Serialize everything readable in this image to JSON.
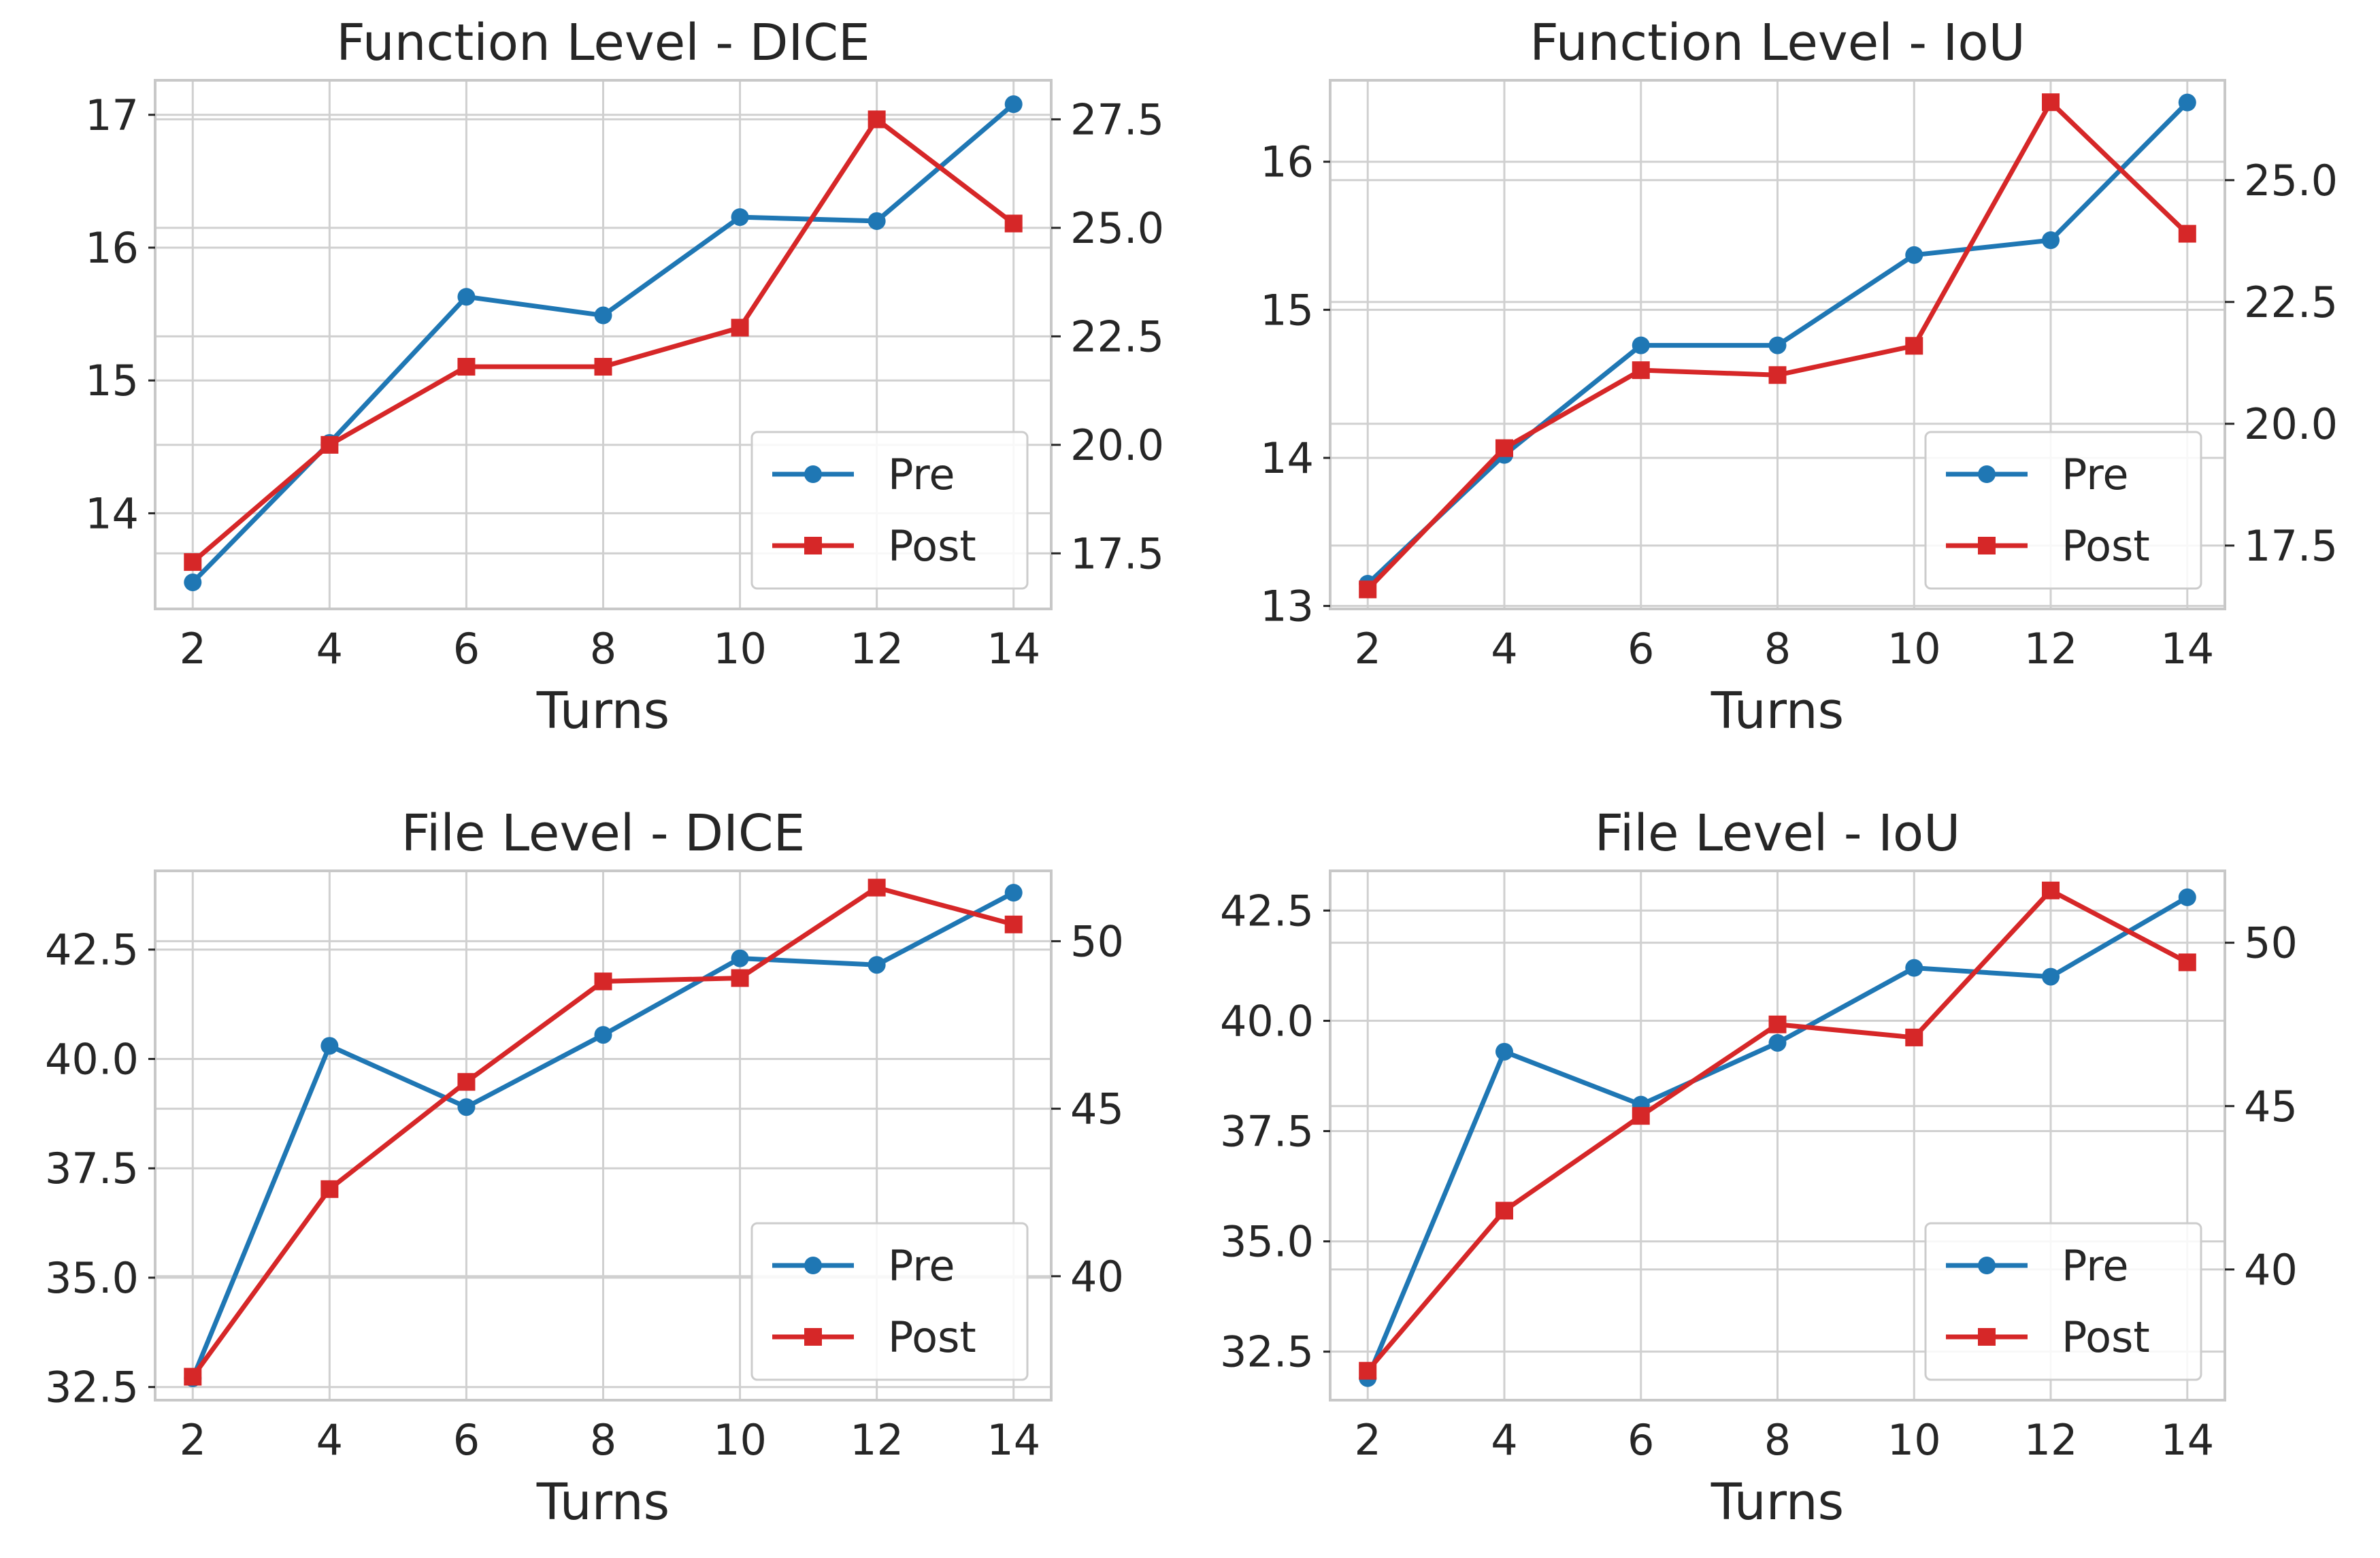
{
  "colors": {
    "pre": "#1f77b4",
    "post": "#d62728",
    "grid": "#d0d0d0",
    "spine": "#c8c8c8",
    "text": "#262626"
  },
  "chart_data": [
    {
      "type": "line",
      "title": "Function Level - DICE",
      "xlabel": "Turns",
      "x": [
        2,
        4,
        6,
        8,
        10,
        12,
        14
      ],
      "xticks": [
        "2",
        "4",
        "6",
        "8",
        "10",
        "12",
        "14"
      ],
      "xlim": [
        1.45,
        14.55
      ],
      "ylim_left": [
        13.28,
        17.26
      ],
      "ylim_right": [
        16.22,
        28.4
      ],
      "yticks_left": [
        "14",
        "15",
        "16",
        "17"
      ],
      "yticks_right": [
        "17.5",
        "20.0",
        "22.5",
        "25.0",
        "27.5"
      ],
      "legend": {
        "loc": "lower right",
        "entries": [
          "Pre",
          "Post"
        ]
      },
      "series": [
        {
          "name": "Pre",
          "axis": "left",
          "marker": "circle",
          "values": [
            13.48,
            14.53,
            15.63,
            15.49,
            16.23,
            16.2,
            17.08
          ]
        },
        {
          "name": "Post",
          "axis": "right",
          "marker": "square",
          "values": [
            17.3,
            20.0,
            21.8,
            21.8,
            22.7,
            27.5,
            25.1
          ]
        }
      ]
    },
    {
      "type": "line",
      "title": "Function Level - IoU",
      "xlabel": "Turns",
      "x": [
        2,
        4,
        6,
        8,
        10,
        12,
        14
      ],
      "xticks": [
        "2",
        "4",
        "6",
        "8",
        "10",
        "12",
        "14"
      ],
      "xlim": [
        1.45,
        14.55
      ],
      "ylim_left": [
        12.98,
        16.55
      ],
      "ylim_right": [
        16.2,
        27.05
      ],
      "yticks_left": [
        "13",
        "14",
        "15",
        "16"
      ],
      "yticks_right": [
        "17.5",
        "20.0",
        "22.5",
        "25.0"
      ],
      "legend": {
        "loc": "lower right",
        "entries": [
          "Pre",
          "Post"
        ]
      },
      "series": [
        {
          "name": "Pre",
          "axis": "left",
          "marker": "circle",
          "values": [
            13.15,
            14.02,
            14.76,
            14.76,
            15.37,
            15.47,
            16.4
          ]
        },
        {
          "name": "Post",
          "axis": "right",
          "marker": "square",
          "values": [
            16.6,
            19.5,
            21.1,
            21.0,
            21.6,
            26.6,
            23.9
          ]
        }
      ]
    },
    {
      "type": "line",
      "title": "File Level - DICE",
      "xlabel": "Turns",
      "x": [
        2,
        4,
        6,
        8,
        10,
        12,
        14
      ],
      "xticks": [
        "2",
        "4",
        "6",
        "8",
        "10",
        "12",
        "14"
      ],
      "xlim": [
        1.45,
        14.55
      ],
      "ylim_left": [
        32.2,
        44.3
      ],
      "ylim_right": [
        36.3,
        52.1
      ],
      "yticks_left": [
        "32.5",
        "35.0",
        "37.5",
        "40.0",
        "42.5"
      ],
      "yticks_right": [
        "40",
        "45",
        "50"
      ],
      "legend": {
        "loc": "lower right",
        "entries": [
          "Pre",
          "Post"
        ]
      },
      "series": [
        {
          "name": "Pre",
          "axis": "left",
          "marker": "circle",
          "values": [
            32.7,
            40.3,
            38.9,
            40.55,
            42.3,
            42.15,
            43.8
          ]
        },
        {
          "name": "Post",
          "axis": "right",
          "marker": "square",
          "values": [
            37.0,
            42.6,
            45.8,
            48.8,
            48.9,
            51.6,
            50.5
          ]
        }
      ]
    },
    {
      "type": "line",
      "title": "File Level - IoU",
      "xlabel": "Turns",
      "x": [
        2,
        4,
        6,
        8,
        10,
        12,
        14
      ],
      "xticks": [
        "2",
        "4",
        "6",
        "8",
        "10",
        "12",
        "14"
      ],
      "xlim": [
        1.45,
        14.55
      ],
      "ylim_left": [
        31.4,
        43.4
      ],
      "ylim_right": [
        36.0,
        52.2
      ],
      "yticks_left": [
        "32.5",
        "35.0",
        "37.5",
        "40.0",
        "42.5"
      ],
      "yticks_right": [
        "40",
        "45",
        "50"
      ],
      "legend": {
        "loc": "lower right",
        "entries": [
          "Pre",
          "Post"
        ]
      },
      "series": [
        {
          "name": "Pre",
          "axis": "left",
          "marker": "circle",
          "values": [
            31.9,
            39.3,
            38.1,
            39.5,
            41.2,
            41.0,
            42.8
          ]
        },
        {
          "name": "Post",
          "axis": "right",
          "marker": "square",
          "values": [
            36.9,
            41.8,
            44.7,
            47.5,
            47.1,
            51.6,
            49.4
          ]
        }
      ]
    }
  ]
}
